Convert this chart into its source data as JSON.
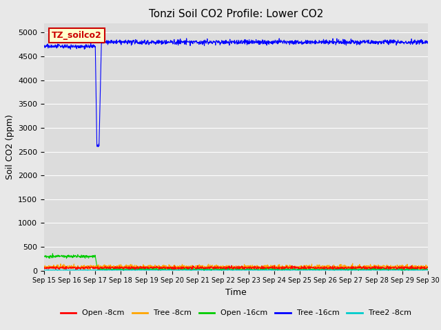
{
  "title": "Tonzi Soil CO2 Profile: Lower CO2",
  "xlabel": "Time",
  "ylabel": "Soil CO2 (ppm)",
  "ylim": [
    0,
    5200
  ],
  "yticks": [
    0,
    500,
    1000,
    1500,
    2000,
    2500,
    3000,
    3500,
    4000,
    4500,
    5000
  ],
  "fig_bg_color": "#e8e8e8",
  "plot_bg_color": "#dcdcdc",
  "grid_color": "#ffffff",
  "legend_box_facecolor": "#ffffcc",
  "legend_box_edgecolor": "#cc0000",
  "legend_label_color": "#cc0000",
  "legend_label": "TZ_soilco2",
  "colors": {
    "open_8cm": "#ff0000",
    "tree_8cm": "#ffa500",
    "open_16cm": "#00cc00",
    "tree_16cm": "#0000ff",
    "tree2_8cm": "#00cccc"
  },
  "labels": {
    "open_8cm": "Open -8cm",
    "tree_8cm": "Tree -8cm",
    "open_16cm": "Open -16cm",
    "tree_16cm": "Tree -16cm",
    "tree2_8cm": "Tree2 -8cm"
  },
  "n_points": 1440,
  "x_start": 15,
  "x_end": 30,
  "xtick_positions": [
    15,
    16,
    17,
    18,
    19,
    20,
    21,
    22,
    23,
    24,
    25,
    26,
    27,
    28,
    29,
    30
  ],
  "xtick_labels": [
    "Sep 15",
    "Sep 16",
    "Sep 17",
    "Sep 18",
    "Sep 19",
    "Sep 20",
    "Sep 21",
    "Sep 22",
    "Sep 23",
    "Sep 24",
    "Sep 25",
    "Sep 26",
    "Sep 27",
    "Sep 28",
    "Sep 29",
    "Sep 30"
  ],
  "title_fontsize": 11,
  "axis_label_fontsize": 9,
  "tick_fontsize": 8,
  "legend_fontsize": 8
}
